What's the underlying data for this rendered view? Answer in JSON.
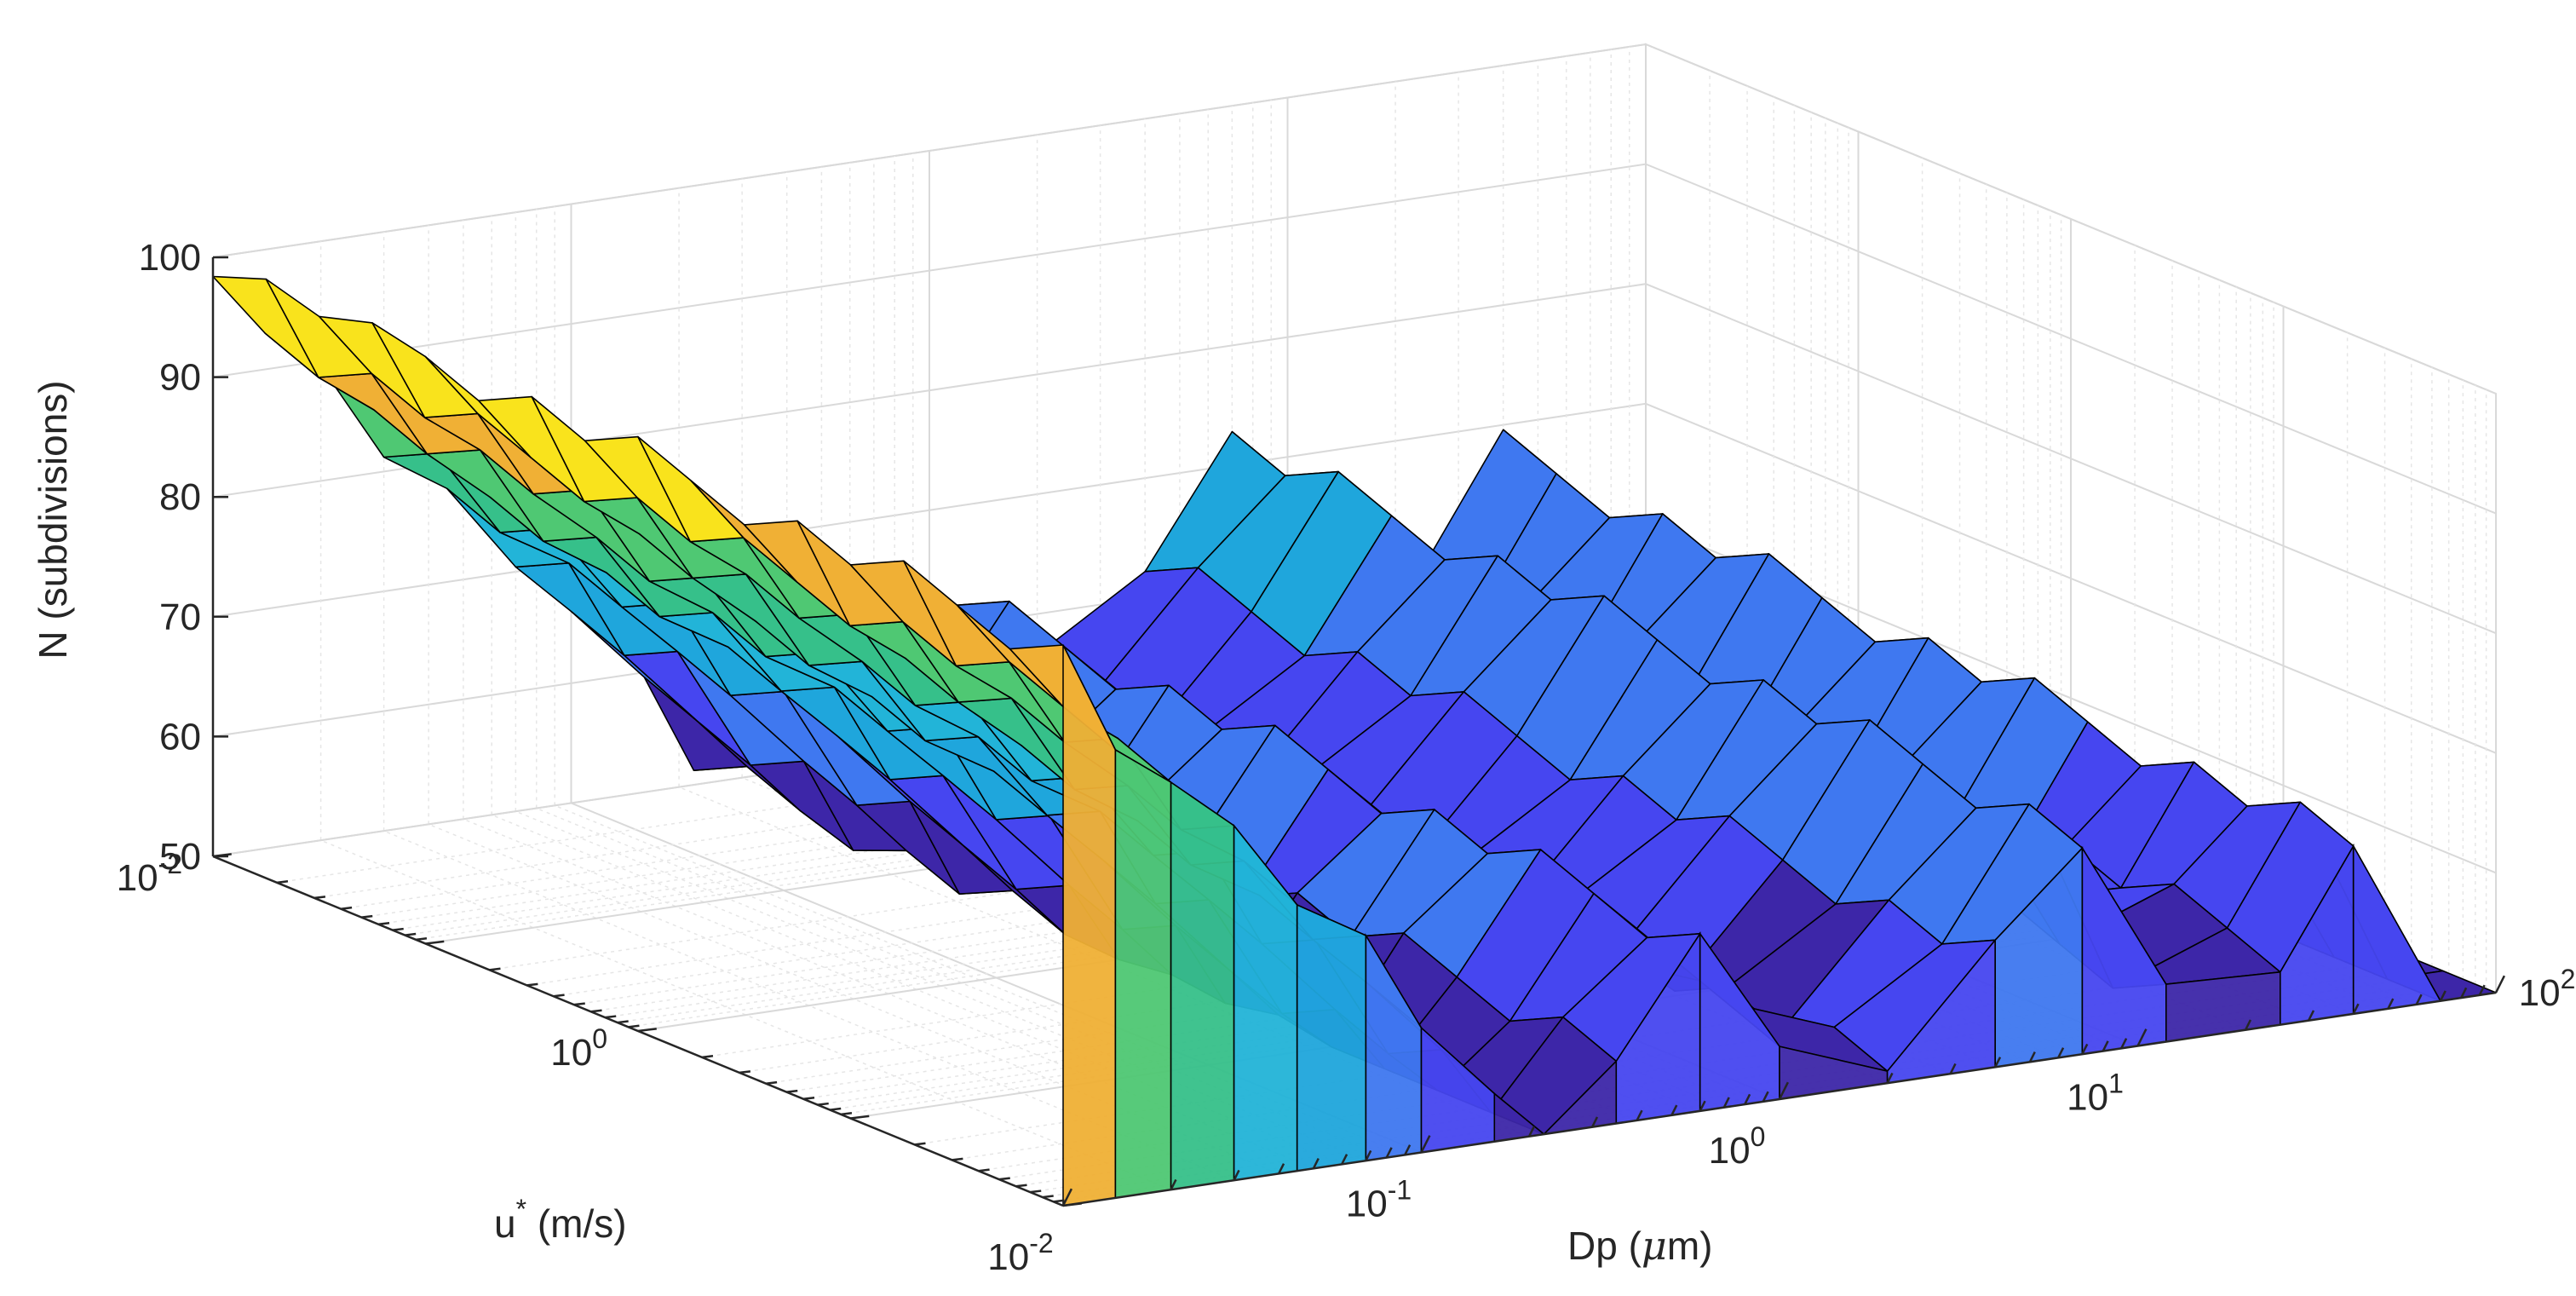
{
  "chart_data": {
    "type": "surface3d",
    "title": "",
    "zlabel": "N (subdivisions)",
    "ylabel_base": "u",
    "ylabel_sup": "*",
    "ylabel_rest": " (m/s)",
    "xlabel_prefix": "Dp (",
    "xlabel_mu": "μ",
    "xlabel_suffix": "m)",
    "x_scale": "log",
    "y_scale": "log",
    "z_scale": "linear",
    "xlim": [
      0.01,
      100
    ],
    "ylim": [
      0.01,
      100
    ],
    "zlim": [
      50,
      100
    ],
    "z_ticks": [
      "50",
      "60",
      "70",
      "80",
      "90",
      "100"
    ],
    "x_ticks": [
      {
        "base": "10",
        "exp": "-2"
      },
      {
        "base": "10",
        "exp": "-1"
      },
      {
        "base": "10",
        "exp": "0"
      },
      {
        "base": "10",
        "exp": "1"
      },
      {
        "base": "10",
        "exp": "2"
      }
    ],
    "y_ticks": [
      {
        "base": "10",
        "exp": "-2"
      },
      {
        "base": "10",
        "exp": "0"
      }
    ],
    "grid": true,
    "colormap": [
      "#3d26a8",
      "#4646f0",
      "#3f78f0",
      "#1fa6dc",
      "#22b4d8",
      "#36c08a",
      "#4fc873",
      "#f0b035",
      "#f9e31c"
    ],
    "profile_along_dp": [
      {
        "dp": 0.01,
        "n": 100
      },
      {
        "dp": 0.014,
        "n": 93
      },
      {
        "dp": 0.02,
        "n": 88
      },
      {
        "dp": 0.03,
        "n": 82
      },
      {
        "dp": 0.045,
        "n": 77
      },
      {
        "dp": 0.07,
        "n": 72
      },
      {
        "dp": 0.1,
        "n": 66
      },
      {
        "dp": 0.16,
        "n": 58
      },
      {
        "dp": 0.22,
        "n": 52
      },
      {
        "dp": 0.35,
        "n": 60
      },
      {
        "dp": 0.6,
        "n": 68
      },
      {
        "dp": 1.0,
        "n": 60
      },
      {
        "dp": 2.0,
        "n": 55
      },
      {
        "dp": 4.0,
        "n": 63
      },
      {
        "dp": 7.0,
        "n": 72
      },
      {
        "dp": 12,
        "n": 58
      },
      {
        "dp": 25,
        "n": 60
      },
      {
        "dp": 40,
        "n": 68
      },
      {
        "dp": 70,
        "n": 52
      },
      {
        "dp": 100,
        "n": 50
      }
    ]
  }
}
